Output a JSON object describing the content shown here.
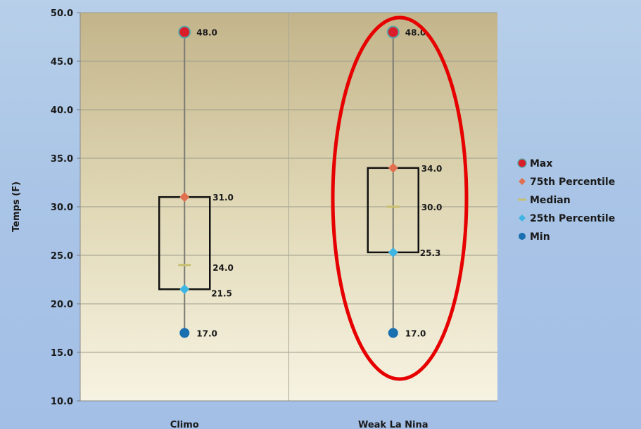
{
  "chart_data": {
    "type": "box",
    "ylabel": "Temps (F)",
    "xlabel": "",
    "ylim": [
      10.0,
      50.0
    ],
    "y_ticks": [
      "10.0",
      "15.0",
      "20.0",
      "25.0",
      "30.0",
      "35.0",
      "40.0",
      "45.0",
      "50.0"
    ],
    "categories": [
      "Climo",
      "Weak La Nina"
    ],
    "series": [
      {
        "name": "Max",
        "values": [
          48.0,
          48.0
        ],
        "labels": [
          "48.0",
          "48.0"
        ],
        "color": "#d91e2a"
      },
      {
        "name": "75th Percentile",
        "values": [
          31.0,
          34.0
        ],
        "labels": [
          "31.0",
          "34.0"
        ],
        "color": "#e07050"
      },
      {
        "name": "Median",
        "values": [
          24.0,
          30.0
        ],
        "labels": [
          "24.0",
          "30.0"
        ],
        "color": "#c8c070"
      },
      {
        "name": "25th Percentile",
        "values": [
          21.5,
          25.3
        ],
        "labels": [
          "21.5",
          "25.3"
        ],
        "color": "#3fb5e3"
      },
      {
        "name": "Min",
        "values": [
          17.0,
          17.0
        ],
        "labels": [
          "17.0",
          "17.0"
        ],
        "color": "#1a6fb0"
      }
    ],
    "legend": {
      "position": "right"
    },
    "grid": true,
    "annotation": {
      "shape": "ellipse",
      "color": "#e60000",
      "highlights": "Weak La Nina"
    }
  }
}
